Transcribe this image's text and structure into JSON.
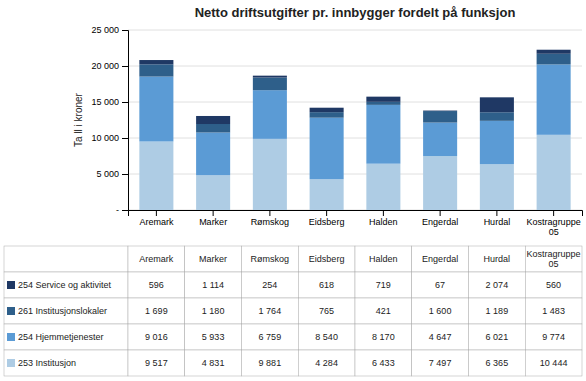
{
  "chart_data": {
    "type": "bar",
    "stacked": true,
    "grid": true,
    "title": "Netto driftsutgifter pr. innbygger fordelt på funksjon",
    "y_label": "Ta ll i kroner",
    "categories": [
      "Aremark",
      "Marker",
      "Rømskog",
      "Eidsberg",
      "Halden",
      "Engerdal",
      "Hurdal",
      "Kostragruppe\n05"
    ],
    "series": [
      {
        "name": "254 Service og aktivitet",
        "color": "#1f3864",
        "values": [
          596,
          1114,
          254,
          618,
          719,
          67,
          2074,
          560
        ],
        "value_labels": [
          "596",
          "1 114",
          "254",
          "618",
          "719",
          "67",
          "2 074",
          "560"
        ]
      },
      {
        "name": "261 Institusjonslokaler",
        "color": "#2e5f8a",
        "values": [
          1699,
          1180,
          1764,
          765,
          421,
          1600,
          1189,
          1483
        ],
        "value_labels": [
          "1 699",
          "1 180",
          "1 764",
          "765",
          "421",
          "1 600",
          "1 189",
          "1 483"
        ]
      },
      {
        "name": "254 Hjemmetjenester",
        "color": "#5b9bd5",
        "values": [
          9016,
          5933,
          6759,
          8540,
          8170,
          4647,
          6021,
          9774
        ],
        "value_labels": [
          "9 016",
          "5 933",
          "6 759",
          "8 540",
          "8 170",
          "4 647",
          "6 021",
          "9 774"
        ]
      },
      {
        "name": "253 Institusjon",
        "color": "#aecce4",
        "values": [
          9517,
          4831,
          9881,
          4284,
          6433,
          7497,
          6365,
          10444
        ],
        "value_labels": [
          "9 517",
          "4 831",
          "9 881",
          "4 284",
          "6 433",
          "7 497",
          "6 365",
          "10 444"
        ]
      }
    ],
    "ylim": [
      0,
      25000
    ],
    "yticks": [
      {
        "value": 0,
        "label": "-"
      },
      {
        "value": 5000,
        "label": "5 000"
      },
      {
        "value": 10000,
        "label": "10 000"
      },
      {
        "value": 15000,
        "label": "15 000"
      },
      {
        "value": 20000,
        "label": "20 000"
      },
      {
        "value": 25000,
        "label": "25 000"
      }
    ]
  }
}
